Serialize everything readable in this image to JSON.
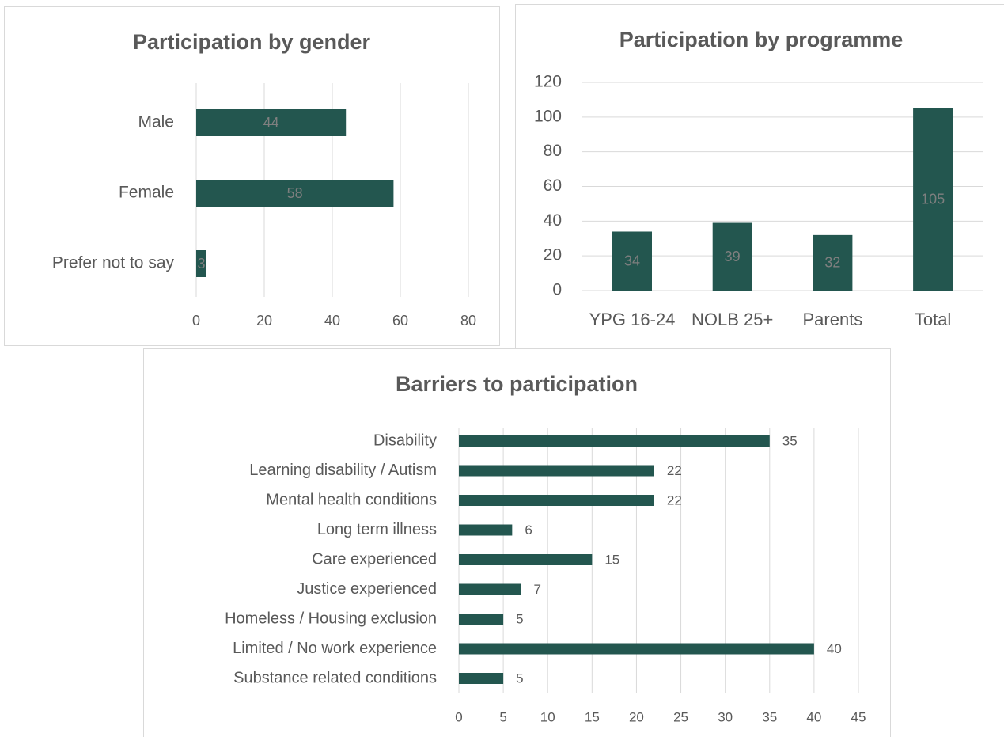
{
  "chart_data": [
    {
      "type": "bar",
      "orientation": "horizontal",
      "title": "Participation by gender",
      "categories": [
        "Male",
        "Female",
        "Prefer not to say"
      ],
      "values": [
        44,
        58,
        3
      ],
      "color": "#23564f",
      "xlim": [
        0,
        80
      ],
      "xticks": [
        0,
        20,
        40,
        60,
        80
      ],
      "grid": true,
      "data_labels": "inside"
    },
    {
      "type": "bar",
      "orientation": "vertical",
      "title": "Participation by programme",
      "categories": [
        "YPG 16-24",
        "NOLB 25+",
        "Parents",
        "Total"
      ],
      "values": [
        34,
        39,
        32,
        105
      ],
      "color": "#23564f",
      "ylim": [
        0,
        120
      ],
      "yticks": [
        0,
        20,
        40,
        60,
        80,
        100,
        120
      ],
      "grid": true,
      "data_labels": "inside"
    },
    {
      "type": "bar",
      "orientation": "horizontal",
      "title": "Barriers to participation",
      "categories": [
        "Disability",
        "Learning disability / Autism",
        "Mental health conditions",
        "Long term illness",
        "Care experienced",
        "Justice experienced",
        "Homeless / Housing exclusion",
        "Limited / No work experience",
        "Substance related conditions"
      ],
      "values": [
        35,
        22,
        22,
        6,
        15,
        7,
        5,
        40,
        5
      ],
      "color": "#23564f",
      "xlim": [
        0,
        45
      ],
      "xticks": [
        0,
        5,
        10,
        15,
        20,
        25,
        30,
        35,
        40,
        45
      ],
      "grid": true,
      "data_labels": "outside"
    }
  ]
}
